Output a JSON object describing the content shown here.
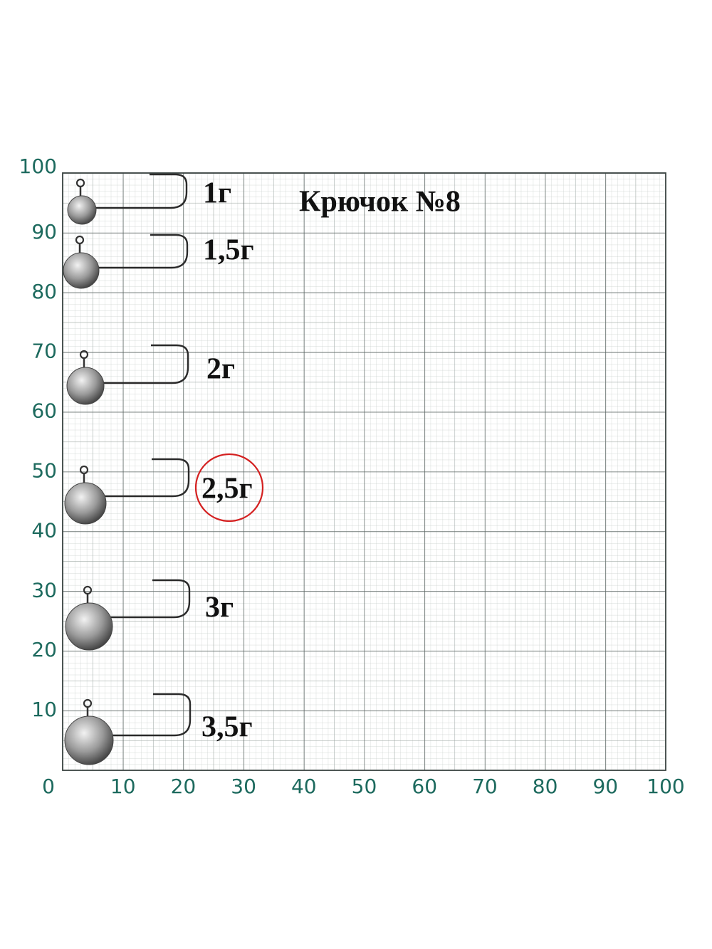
{
  "title": "Крючок №8",
  "x_labels": [
    "0",
    "10",
    "20",
    "30",
    "40",
    "50",
    "60",
    "70",
    "80",
    "90",
    "100"
  ],
  "y_labels": [
    "10",
    "20",
    "30",
    "40",
    "50",
    "60",
    "70",
    "80",
    "90",
    "100"
  ],
  "jigs": [
    {
      "label": "1г"
    },
    {
      "label": "1,5г"
    },
    {
      "label": "2г"
    },
    {
      "label": "2,5г"
    },
    {
      "label": "3г"
    },
    {
      "label": "3,5г"
    }
  ],
  "highlighted": 3
}
